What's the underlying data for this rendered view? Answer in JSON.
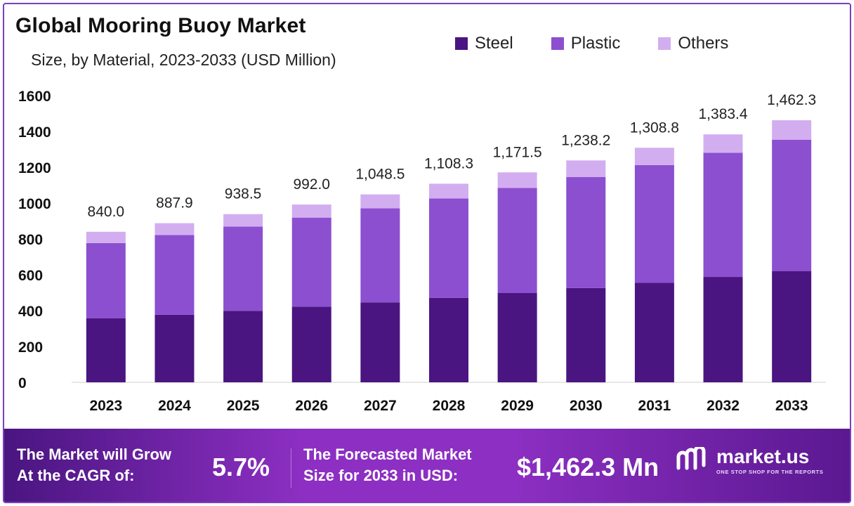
{
  "header": {
    "title": "Global Mooring Buoy Market",
    "subtitle": "Size, by Material, 2023-2033 (USD Million)"
  },
  "colors": {
    "steel": "#4a1580",
    "plastic": "#8c4fd0",
    "others": "#d2aef0",
    "frame": "#7b3fbf"
  },
  "chart_data": {
    "type": "bar",
    "stacked": true,
    "title": "Global Mooring Buoy Market",
    "subtitle": "Size, by Material, 2023-2033 (USD Million)",
    "categories": [
      "2023",
      "2024",
      "2025",
      "2026",
      "2027",
      "2028",
      "2029",
      "2030",
      "2031",
      "2032",
      "2033"
    ],
    "series": [
      {
        "name": "Steel",
        "color": "#4a1580",
        "values": [
          357,
          377,
          399,
          422,
          446,
          471,
          498,
          526,
          556,
          588,
          621
        ]
      },
      {
        "name": "Plastic",
        "color": "#8c4fd0",
        "values": [
          420,
          445,
          470,
          497,
          525,
          555,
          587,
          620,
          656,
          693,
          733
        ]
      },
      {
        "name": "Others",
        "color": "#d2aef0",
        "values": [
          63,
          65.9,
          69.5,
          73,
          77.5,
          82.3,
          86.5,
          92.2,
          96.8,
          102.4,
          108.3
        ]
      }
    ],
    "totals": [
      "840.0",
      "887.9",
      "938.5",
      "992.0",
      "1,048.5",
      "1,108.3",
      "1,171.5",
      "1,238.2",
      "1,308.8",
      "1,383.4",
      "1,462.3"
    ],
    "yticks": [
      "0",
      "200",
      "400",
      "600",
      "800",
      "1000",
      "1200",
      "1400",
      "1600"
    ],
    "ylim": [
      0,
      1600
    ],
    "xlabel": "",
    "ylabel": "",
    "legend_position": "top-right",
    "grid": false
  },
  "footer": {
    "cagr_label_line1": "The Market will Grow",
    "cagr_label_line2": "At the CAGR of:",
    "cagr_value": "5.7%",
    "forecast_label_line1": "The Forecasted Market",
    "forecast_label_line2": "Size for 2033 in USD:",
    "forecast_value": "$1,462.3 Mn",
    "brand_name": "market.us",
    "brand_tagline": "ONE STOP SHOP FOR THE REPORTS"
  }
}
